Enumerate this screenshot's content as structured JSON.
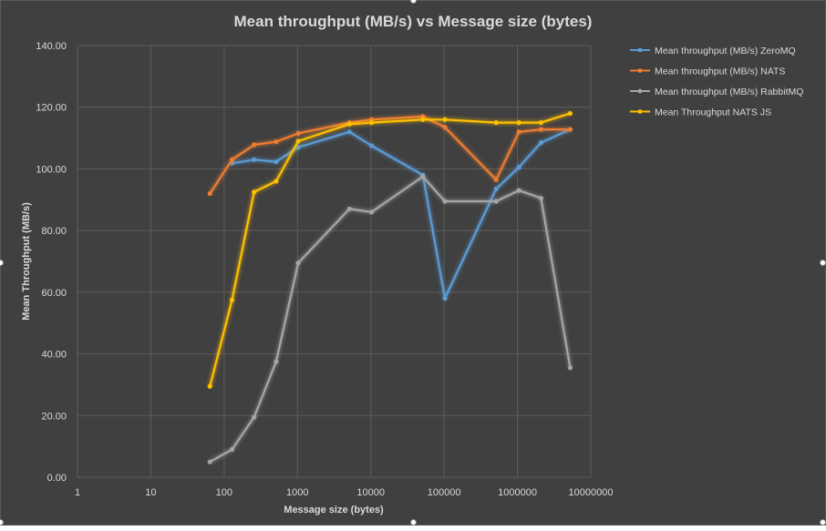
{
  "chart_data": {
    "type": "line",
    "title": "Mean throughput (MB/s) vs Message size (bytes)",
    "xlabel": "Message size (bytes)",
    "ylabel": "Mean Throughput (MB/s)",
    "xscale": "log",
    "xlim": [
      1,
      10000000
    ],
    "ylim": [
      0,
      140
    ],
    "x_ticks": [
      "1",
      "10",
      "100",
      "1000",
      "10000",
      "100000",
      "1000000",
      "10000000"
    ],
    "y_ticks": [
      "0.00",
      "20.00",
      "40.00",
      "60.00",
      "80.00",
      "100.00",
      "120.00",
      "140.00"
    ],
    "grid": true,
    "legend_position": "right",
    "series": [
      {
        "name": "Mean throughput (MB/s) ZeroMQ",
        "color": "#5b9bd5",
        "x": [
          128,
          256,
          512,
          1024,
          5120,
          10240,
          51200,
          102400,
          512000,
          1048576,
          2097152,
          5242880
        ],
        "y": [
          101.8,
          103,
          102.3,
          107,
          112,
          107.5,
          98,
          58,
          93.5,
          100.5,
          108.5,
          112.8
        ]
      },
      {
        "name": "Mean throughput (MB/s) NATS",
        "color": "#ed7d31",
        "x": [
          64,
          128,
          256,
          512,
          1024,
          5120,
          10240,
          51200,
          102400,
          512000,
          1048576,
          2097152,
          5242880
        ],
        "y": [
          92,
          103,
          107.8,
          108.8,
          111.5,
          115,
          116,
          117,
          113.5,
          96.5,
          112,
          112.8,
          112.8
        ]
      },
      {
        "name": "Mean throughput (MB/s) RabbitMQ",
        "color": "#a5a5a5",
        "x": [
          64,
          128,
          256,
          512,
          1024,
          5120,
          10240,
          51200,
          102400,
          512000,
          1048576,
          2097152,
          5242880
        ],
        "y": [
          5,
          9,
          19.5,
          37.5,
          69.5,
          87,
          86,
          97.5,
          89.5,
          89.5,
          93,
          90.5,
          35.5
        ]
      },
      {
        "name": "Mean Throughput NATS JS",
        "color": "#ffc000",
        "x": [
          64,
          128,
          256,
          512,
          1024,
          5120,
          10240,
          51200,
          102400,
          512000,
          1048576,
          2097152,
          5242880
        ],
        "y": [
          29.5,
          57.5,
          92.5,
          96,
          109,
          114.5,
          115,
          116,
          116,
          115,
          115,
          115,
          118
        ]
      }
    ]
  },
  "colors": {
    "background": "#404040",
    "grid": "#5c5c5c",
    "text": "#d9d9d9"
  }
}
